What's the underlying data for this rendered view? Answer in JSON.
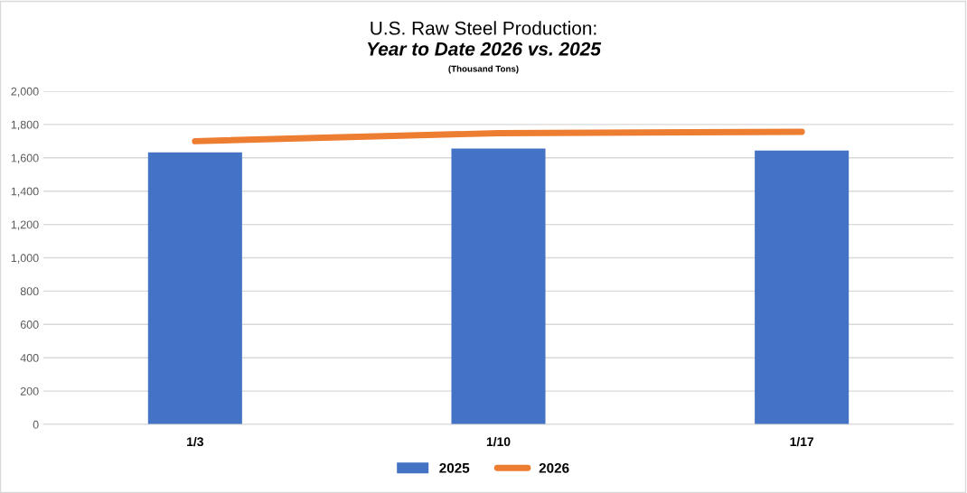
{
  "chart_data": {
    "type": "bar",
    "title": "U.S. Raw Steel Production:",
    "subtitle": "Year to Date 2026 vs. 2025",
    "annotations": [
      "(Thousand Tons)"
    ],
    "categories": [
      "1/3",
      "1/10",
      "1/17"
    ],
    "series": [
      {
        "name": "2025",
        "color": "#4472c4",
        "values": [
          1633,
          1656,
          1644
        ]
      },
      {
        "name": "2026",
        "type": "line",
        "color": "#ed7d31",
        "values": [
          1700,
          1748,
          1756
        ]
      }
    ],
    "ylim": [
      0,
      2000
    ],
    "yticks": [
      {
        "value": 0,
        "label": "0"
      },
      {
        "value": 200,
        "label": "200"
      },
      {
        "value": 400,
        "label": "400"
      },
      {
        "value": 600,
        "label": "600"
      },
      {
        "value": 800,
        "label": "800"
      },
      {
        "value": 1000,
        "label": "1,000"
      },
      {
        "value": 1200,
        "label": "1,200"
      },
      {
        "value": 1400,
        "label": "1,400"
      },
      {
        "value": 1600,
        "label": "1,600"
      },
      {
        "value": 1800,
        "label": "1,800"
      },
      {
        "value": 2000,
        "label": "2,000"
      }
    ],
    "grid": "y",
    "legend": "bottom"
  }
}
